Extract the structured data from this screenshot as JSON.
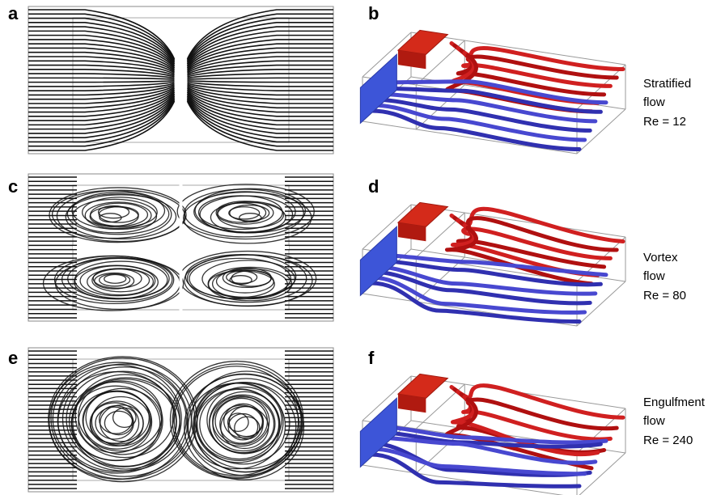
{
  "panels": [
    {
      "label": "a"
    },
    {
      "label": "b"
    },
    {
      "label": "c"
    },
    {
      "label": "d"
    },
    {
      "label": "e"
    },
    {
      "label": "f"
    }
  ],
  "annotations": [
    {
      "lines": [
        "Stratified",
        "flow",
        "Re = 12"
      ]
    },
    {
      "lines": [
        "Vortex",
        "flow",
        "Re = 80"
      ]
    },
    {
      "lines": [
        "Engulfment",
        "flow",
        "Re = 240"
      ]
    }
  ]
}
